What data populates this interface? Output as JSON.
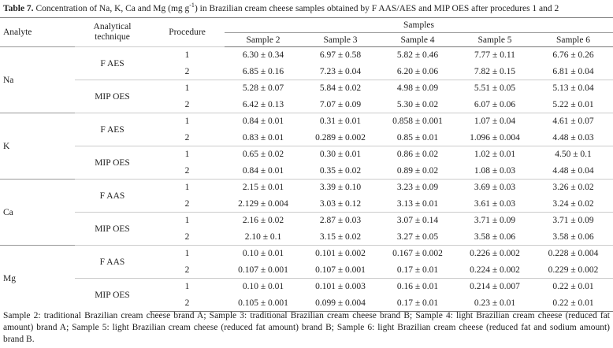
{
  "caption": {
    "label": "Table 7.",
    "text_parts": [
      "Concentration of Na, K, Ca and Mg (mg g",
      "-1",
      ") in Brazilian cream cheese samples obtained by F AAS/AES and MIP OES after procedures 1 and 2"
    ]
  },
  "table": {
    "headers": {
      "analyte": "Analyte",
      "technique": "Analytical technique",
      "procedure": "Procedure",
      "samples": "Samples",
      "sample_names": [
        "Sample 2",
        "Sample 3",
        "Sample 4",
        "Sample 5",
        "Sample 6"
      ]
    },
    "groups": [
      {
        "analyte": "Na",
        "techniques": [
          {
            "name": "F AES",
            "rows": [
              {
                "procedure": "1",
                "values": [
                  "6.30 ± 0.34",
                  "6.97 ± 0.58",
                  "5.82 ± 0.46",
                  "7.77 ± 0.11",
                  "6.76 ± 0.26"
                ]
              },
              {
                "procedure": "2",
                "values": [
                  "6.85 ± 0.16",
                  "7.23 ± 0.04",
                  "6.20 ± 0.06",
                  "7.82 ± 0.15",
                  "6.81 ± 0.04"
                ]
              }
            ]
          },
          {
            "name": "MIP OES",
            "rows": [
              {
                "procedure": "1",
                "values": [
                  "5.28 ± 0.07",
                  "5.84 ± 0.02",
                  "4.98 ± 0.09",
                  "5.51 ± 0.05",
                  "5.13 ± 0.04"
                ]
              },
              {
                "procedure": "2",
                "values": [
                  "6.42 ± 0.13",
                  "7.07 ± 0.09",
                  "5.30 ± 0.02",
                  "6.07 ± 0.06",
                  "5.22 ± 0.01"
                ]
              }
            ]
          }
        ]
      },
      {
        "analyte": "K",
        "techniques": [
          {
            "name": "F AES",
            "rows": [
              {
                "procedure": "1",
                "values": [
                  "0.84 ± 0.01",
                  "0.31 ± 0.01",
                  "0.858 ± 0.001",
                  "1.07 ± 0.04",
                  "4.61 ± 0.07"
                ]
              },
              {
                "procedure": "2",
                "values": [
                  "0.83 ± 0.01",
                  "0.289 ± 0.002",
                  "0.85 ± 0.01",
                  "1.096 ± 0.004",
                  "4.48 ± 0.03"
                ]
              }
            ]
          },
          {
            "name": "MIP OES",
            "rows": [
              {
                "procedure": "1",
                "values": [
                  "0.65 ± 0.02",
                  "0.30 ± 0.01",
                  "0.86 ± 0.02",
                  "1.02 ± 0.01",
                  "4.50 ± 0.1"
                ]
              },
              {
                "procedure": "2",
                "values": [
                  "0.84 ± 0.01",
                  "0.35 ± 0.02",
                  "0.89 ± 0.02",
                  "1.08 ± 0.03",
                  "4.48 ± 0.04"
                ]
              }
            ]
          }
        ]
      },
      {
        "analyte": "Ca",
        "techniques": [
          {
            "name": "F AAS",
            "rows": [
              {
                "procedure": "1",
                "values": [
                  "2.15 ± 0.01",
                  "3.39 ± 0.10",
                  "3.23 ± 0.09",
                  "3.69 ± 0.03",
                  "3.26 ± 0.02"
                ]
              },
              {
                "procedure": "2",
                "values": [
                  "2.129 ± 0.004",
                  "3.03 ± 0.12",
                  "3.13 ± 0.01",
                  "3.61 ± 0.03",
                  "3.24 ± 0.02"
                ]
              }
            ]
          },
          {
            "name": "MIP OES",
            "rows": [
              {
                "procedure": "1",
                "values": [
                  "2.16 ± 0.02",
                  "2.87 ± 0.03",
                  "3.07 ± 0.14",
                  "3.71 ± 0.09",
                  "3.71 ± 0.09"
                ]
              },
              {
                "procedure": "2",
                "values": [
                  "2.10 ± 0.1",
                  "3.15 ± 0.02",
                  "3.27 ± 0.05",
                  "3.58 ± 0.06",
                  "3.58 ± 0.06"
                ]
              }
            ]
          }
        ]
      },
      {
        "analyte": "Mg",
        "techniques": [
          {
            "name": "F AAS",
            "rows": [
              {
                "procedure": "1",
                "values": [
                  "0.10 ± 0.01",
                  "0.101 ± 0.002",
                  "0.167 ± 0.002",
                  "0.226 ± 0.002",
                  "0.228 ± 0.004"
                ]
              },
              {
                "procedure": "2",
                "values": [
                  "0.107 ± 0.001",
                  "0.107 ± 0.001",
                  "0.17 ± 0.01",
                  "0.224 ± 0.002",
                  "0.229 ± 0.002"
                ]
              }
            ]
          },
          {
            "name": "MIP OES",
            "rows": [
              {
                "procedure": "1",
                "values": [
                  "0.10 ± 0.01",
                  "0.101 ± 0.003",
                  "0.16 ± 0.01",
                  "0.214 ± 0.007",
                  "0.22 ± 0.01"
                ]
              },
              {
                "procedure": "2",
                "values": [
                  "0.105 ± 0.001",
                  "0.099 ± 0.004",
                  "0.17 ± 0.01",
                  "0.23 ± 0.01",
                  "0.22 ± 0.01"
                ]
              }
            ]
          }
        ]
      }
    ]
  },
  "footnote": "Sample 2: traditional Brazilian cream cheese brand A; Sample 3: traditional Brazilian cream cheese brand B; Sample 4: light Brazilian cream cheese (reduced fat amount) brand A; Sample 5: light Brazilian cream cheese (reduced fat amount) brand B; Sample 6: light Brazilian cream cheese (reduced fat and sodium amount) brand B."
}
